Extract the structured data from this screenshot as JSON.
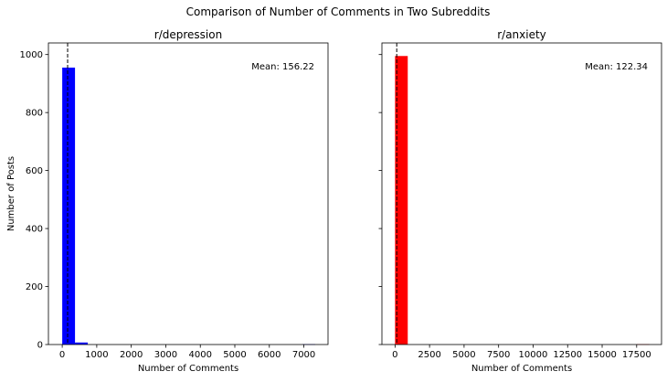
{
  "figure": {
    "suptitle": "Comparison of Number of Comments in Two Subreddits"
  },
  "chart_data": [
    {
      "type": "bar",
      "title": "r/depression",
      "xlabel": "Number of Comments",
      "ylabel": "Number of Posts",
      "xlim": [
        -400,
        7700
      ],
      "ylim": [
        0,
        1040
      ],
      "xticks": [
        0,
        1000,
        2000,
        3000,
        4000,
        5000,
        6000,
        7000
      ],
      "xtick_labels": [
        "0",
        "1000",
        "2000",
        "3000",
        "4000",
        "5000",
        "6000",
        "7000"
      ],
      "yticks": [
        0,
        200,
        400,
        600,
        800,
        1000
      ],
      "ytick_labels": [
        "0",
        "200",
        "400",
        "600",
        "800",
        "1000"
      ],
      "bars": [
        {
          "x0": 0,
          "x1": 370,
          "count": 955
        },
        {
          "x0": 370,
          "x1": 740,
          "count": 7
        },
        {
          "x0": 6960,
          "x1": 7330,
          "count": 1
        }
      ],
      "bar_color": "#0000ff",
      "mean_value": 156.22,
      "mean_line_style": "dashed",
      "annotation": "Mean: 156.22",
      "grid": false
    },
    {
      "type": "bar",
      "title": "r/anxiety",
      "xlabel": "Number of Comments",
      "ylabel": "",
      "xlim": [
        -950,
        19300
      ],
      "ylim": [
        0,
        1040
      ],
      "xticks": [
        0,
        2500,
        5000,
        7500,
        10000,
        12500,
        15000,
        17500
      ],
      "xtick_labels": [
        "0",
        "2500",
        "5000",
        "7500",
        "10000",
        "12500",
        "15000",
        "17500"
      ],
      "yticks": [
        0,
        200,
        400,
        600,
        800,
        1000
      ],
      "ytick_labels": [],
      "bars": [
        {
          "x0": 0,
          "x1": 920,
          "count": 995
        },
        {
          "x0": 17500,
          "x1": 18420,
          "count": 1
        }
      ],
      "bar_color": "#ff0000",
      "mean_value": 122.34,
      "mean_line_style": "dashed",
      "annotation": "Mean: 122.34",
      "grid": false
    }
  ]
}
